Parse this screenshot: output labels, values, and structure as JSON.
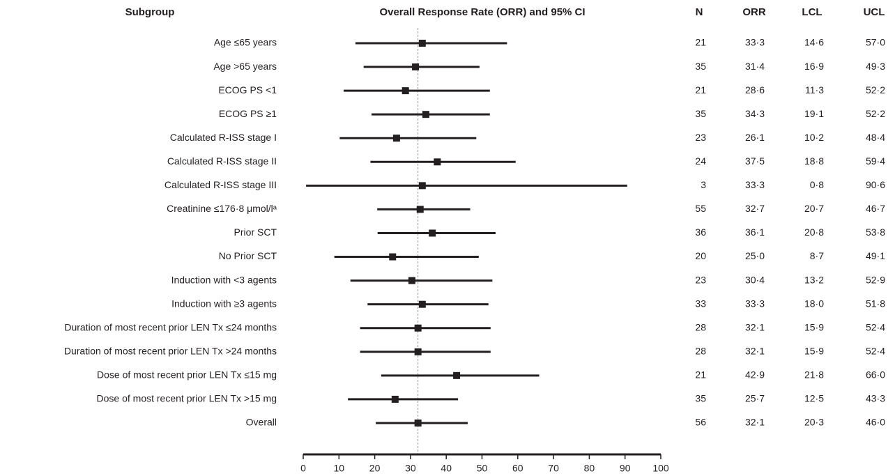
{
  "chart_data": {
    "type": "forest",
    "title": "Overall Response Rate (ORR) and 95% CI",
    "columns": {
      "subgroup": "Subgroup",
      "n": "N",
      "orr": "ORR",
      "lcl": "LCL",
      "ucl": "UCL"
    },
    "categories": [
      "Age ≤65 years",
      "Age >65 years",
      "ECOG PS <1",
      "ECOG PS ≥1",
      "Calculated R-ISS stage I",
      "Calculated R-ISS stage II",
      "Calculated R-ISS stage III",
      "Creatinine ≤176·8 μmol/lᵃ",
      "Prior SCT",
      "No Prior SCT",
      "Induction with <3 agents",
      "Induction with ≥3 agents",
      "Duration of most recent prior LEN Tx ≤24 months",
      "Duration of most recent prior LEN Tx >24 months",
      "Dose of most recent prior LEN Tx ≤15 mg",
      "Dose of most recent prior LEN Tx >15 mg",
      "Overall"
    ],
    "n": [
      21,
      35,
      21,
      35,
      23,
      24,
      3,
      55,
      36,
      20,
      23,
      33,
      28,
      28,
      21,
      35,
      56
    ],
    "values": [
      33.3,
      31.4,
      28.6,
      34.3,
      26.1,
      37.5,
      33.3,
      32.7,
      36.1,
      25.0,
      30.4,
      33.3,
      32.1,
      32.1,
      42.9,
      25.7,
      32.1
    ],
    "value_labels": [
      "33·3",
      "31·4",
      "28·6",
      "34·3",
      "26·1",
      "37·5",
      "33·3",
      "32·7",
      "36·1",
      "25·0",
      "30·4",
      "33·3",
      "32·1",
      "32·1",
      "42·9",
      "25·7",
      "32·1"
    ],
    "lcl": [
      14.6,
      16.9,
      11.3,
      19.1,
      10.2,
      18.8,
      0.8,
      20.7,
      20.8,
      8.7,
      13.2,
      18.0,
      15.9,
      15.9,
      21.8,
      12.5,
      20.3
    ],
    "lcl_labels": [
      "14·6",
      "16·9",
      "11·3",
      "19·1",
      "10·2",
      "18·8",
      "0·8",
      "20·7",
      "20·8",
      "8·7",
      "13·2",
      "18·0",
      "15·9",
      "15·9",
      "21·8",
      "12·5",
      "20·3"
    ],
    "ucl": [
      57.0,
      49.3,
      52.2,
      52.2,
      48.4,
      59.4,
      90.6,
      46.7,
      53.8,
      49.1,
      52.9,
      51.8,
      52.4,
      52.4,
      66.0,
      43.3,
      46.0
    ],
    "ucl_labels": [
      "57·0",
      "49·3",
      "52·2",
      "52·2",
      "48·4",
      "59·4",
      "90·6",
      "46·7",
      "53·8",
      "49·1",
      "52·9",
      "51·8",
      "52·4",
      "52·4",
      "66·0",
      "43·3",
      "46·0"
    ],
    "reference_line": 32.1,
    "xlim": [
      0,
      100
    ],
    "xticks": [
      0,
      10,
      20,
      30,
      40,
      50,
      60,
      70,
      80,
      90,
      100
    ],
    "color": "#231f20"
  }
}
